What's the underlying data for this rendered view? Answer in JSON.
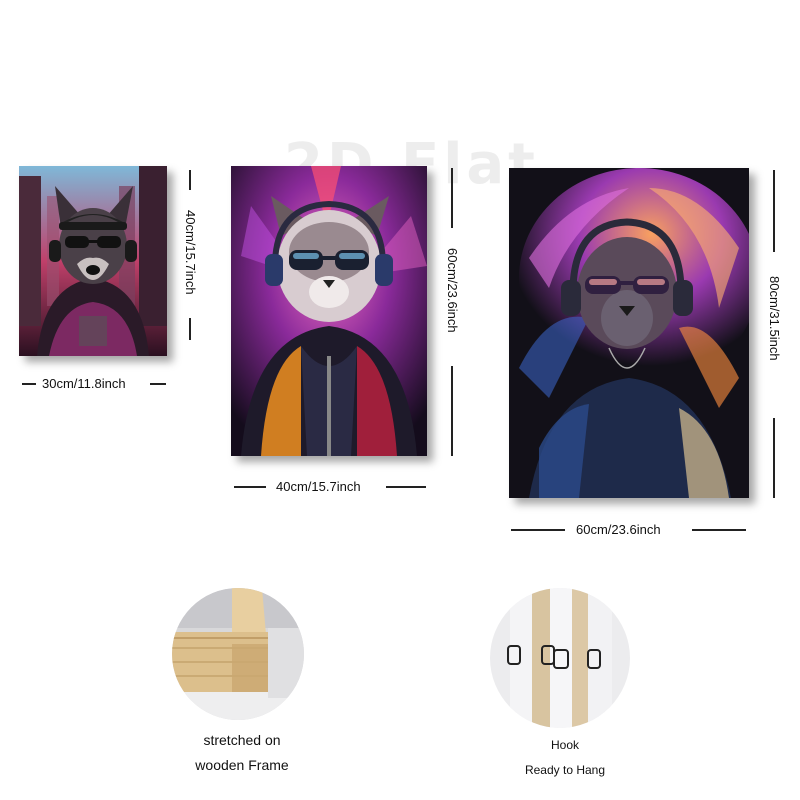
{
  "watermark": "2D Flat",
  "panels": [
    {
      "subject": "dog with cap, sunglasses and headphones in city",
      "width_label": "30cm/11.8inch",
      "height_label": "40cm/15.7inch"
    },
    {
      "subject": "cat with sunglasses and headphones in hoodie",
      "width_label": "40cm/15.7inch",
      "height_label": "60cm/23.6inch"
    },
    {
      "subject": "lion with sunglasses and headphones",
      "width_label": "60cm/23.6inch",
      "height_label": "80cm/31.5inch"
    }
  ],
  "features": [
    {
      "caption_line1": "stretched on",
      "caption_line2": "wooden Frame"
    },
    {
      "caption_line1": "Hook",
      "caption_line2": "Ready to Hang"
    }
  ],
  "colors": {
    "accent_pink": "#e040c8",
    "accent_blue": "#3aa0ff",
    "accent_orange": "#ff8a2a",
    "dark": "#121018"
  }
}
